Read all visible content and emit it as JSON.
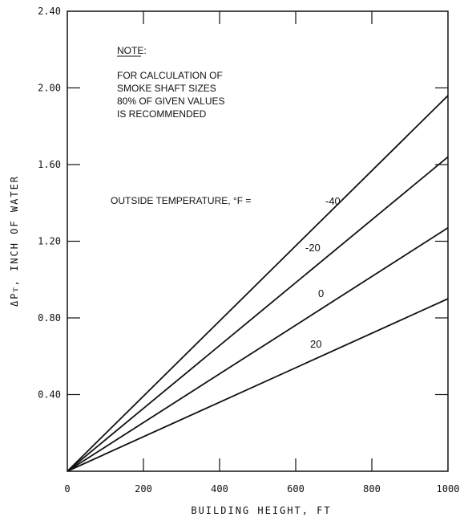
{
  "chart_data": {
    "type": "line",
    "xlabel": "BUILDING HEIGHT, FT",
    "ylabel": "ΔPᴛ, INCH OF WATER",
    "xlim": [
      0,
      1000
    ],
    "ylim": [
      0,
      2.4
    ],
    "x_ticks": [
      0,
      200,
      400,
      600,
      800,
      1000
    ],
    "x_tick_labels": [
      "0",
      "200",
      "400",
      "600",
      "800",
      "1000"
    ],
    "y_ticks": [
      0.4,
      0.8,
      1.2,
      1.6,
      2.0,
      2.4
    ],
    "y_tick_labels": [
      "0.40",
      "0.80",
      "1.20",
      "1.60",
      "2.00",
      "2.40"
    ],
    "grid": false,
    "note": {
      "heading": "NOTE:",
      "lines": [
        "FOR CALCULATION OF",
        "SMOKE SHAFT SIZES",
        "80% OF GIVEN VALUES",
        "IS RECOMMENDED"
      ]
    },
    "series_caption": "OUTSIDE TEMPERATURE, °F =",
    "series": [
      {
        "name": "-40",
        "x": [
          0,
          1000
        ],
        "y": [
          0,
          1.96
        ]
      },
      {
        "name": "-20",
        "x": [
          0,
          1000
        ],
        "y": [
          0,
          1.64
        ]
      },
      {
        "name": "0",
        "x": [
          0,
          1000
        ],
        "y": [
          0,
          1.27
        ]
      },
      {
        "name": "20",
        "x": [
          0,
          1000
        ],
        "y": [
          0,
          0.9
        ]
      }
    ]
  }
}
